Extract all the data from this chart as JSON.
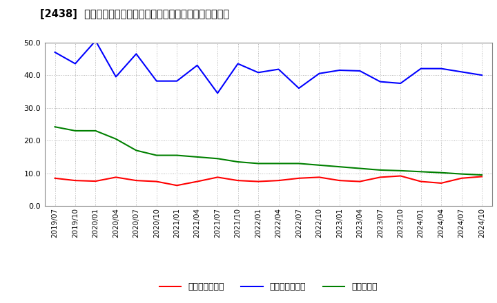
{
  "title": "[2438]  売上債権回転率、買入債務回転率、在庫回転率の推移",
  "x_labels": [
    "2019/07",
    "2019/10",
    "2020/01",
    "2020/04",
    "2020/07",
    "2020/10",
    "2021/01",
    "2021/04",
    "2021/07",
    "2021/10",
    "2022/01",
    "2022/04",
    "2022/07",
    "2022/10",
    "2023/01",
    "2023/04",
    "2023/07",
    "2023/10",
    "2024/01",
    "2024/04",
    "2024/07",
    "2024/10"
  ],
  "receivables_turnover": [
    8.5,
    7.8,
    7.6,
    8.8,
    7.8,
    7.5,
    6.3,
    7.5,
    8.8,
    7.8,
    7.5,
    7.8,
    8.5,
    8.8,
    7.8,
    7.5,
    8.8,
    9.2,
    7.5,
    7.0,
    8.5,
    9.0
  ],
  "payables_turnover": [
    47.0,
    43.5,
    50.5,
    39.5,
    46.5,
    38.2,
    38.2,
    43.0,
    34.5,
    43.5,
    40.8,
    41.8,
    36.0,
    40.5,
    41.5,
    41.3,
    38.0,
    37.5,
    42.0,
    42.0,
    41.0,
    40.0
  ],
  "inventory_turnover": [
    24.2,
    23.0,
    23.0,
    20.5,
    17.0,
    15.5,
    15.5,
    15.0,
    14.5,
    13.5,
    13.0,
    13.0,
    13.0,
    12.5,
    12.0,
    11.5,
    11.0,
    10.8,
    10.5,
    10.2,
    9.8,
    9.5
  ],
  "receivables_color": "#ff0000",
  "payables_color": "#0000ff",
  "inventory_color": "#008000",
  "legend_labels": [
    "売上債権回転率",
    "買入債務回転率",
    "在庫回転率"
  ],
  "ylim": [
    0.0,
    50.0
  ],
  "yticks": [
    0.0,
    10.0,
    20.0,
    30.0,
    40.0,
    50.0
  ],
  "background_color": "#ffffff",
  "plot_bg_color": "#ffffff"
}
